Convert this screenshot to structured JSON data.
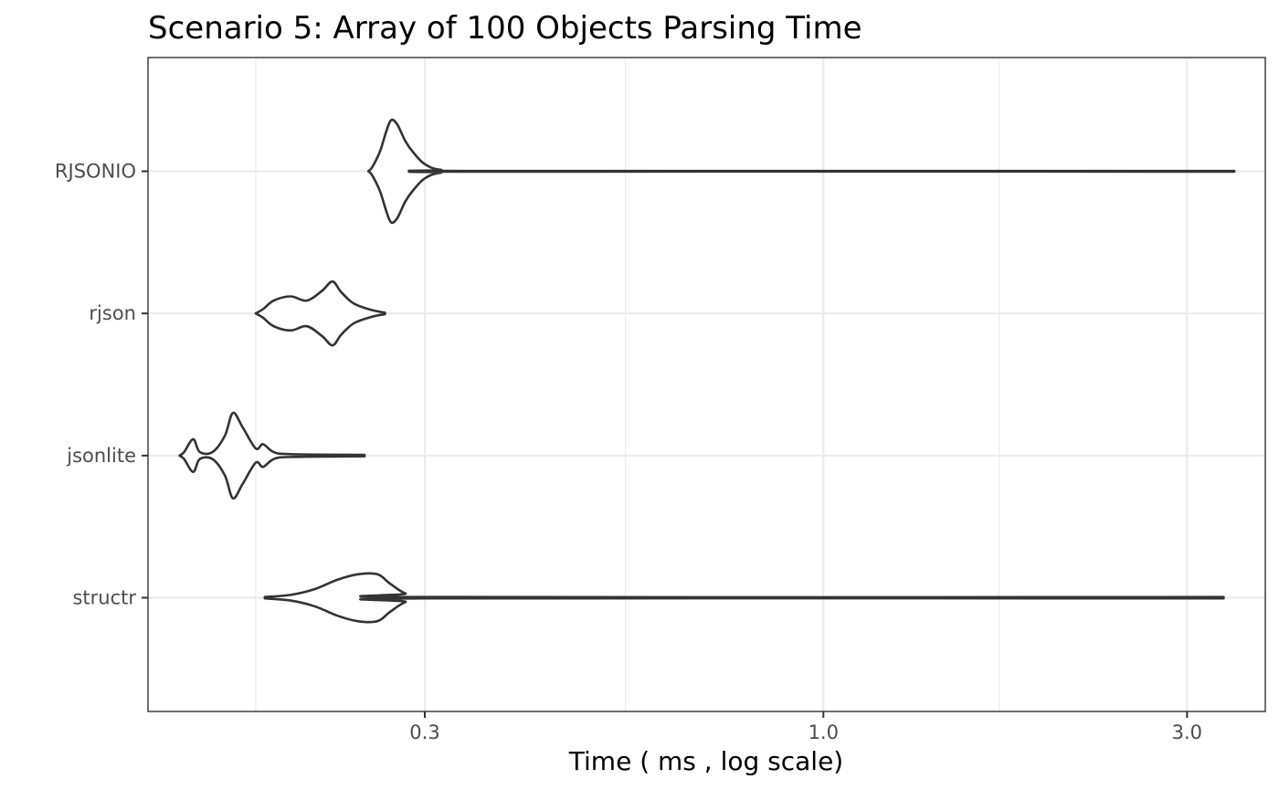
{
  "chart_data": {
    "type": "violin",
    "title": "Scenario 5: Array of 100 Objects Parsing Time",
    "xlabel": "Time ( ms , log scale)",
    "ylabel": "",
    "x_scale": "log10",
    "xlim": [
      0.13,
      3.8
    ],
    "x_ticks": [
      0.3,
      1.0,
      3.0
    ],
    "x_tick_labels": [
      "0.3",
      "1.0",
      "3.0"
    ],
    "x_minor_ticks": [
      0.18,
      0.55,
      1.7
    ],
    "grid": true,
    "theme": "black-and-white",
    "outline_color": "#333333",
    "fill_color": "#ffffff",
    "categories": [
      "RJSONIO",
      "rjson",
      "jsonlite",
      "structr"
    ],
    "series": [
      {
        "name": "RJSONIO",
        "profile": [
          [
            0.253,
            0.0
          ],
          [
            0.256,
            0.06
          ],
          [
            0.262,
            0.28
          ],
          [
            0.267,
            0.56
          ],
          [
            0.271,
            0.72
          ],
          [
            0.276,
            0.66
          ],
          [
            0.283,
            0.42
          ],
          [
            0.29,
            0.26
          ],
          [
            0.3,
            0.1
          ],
          [
            0.315,
            0.02
          ],
          [
            0.35,
            0.005
          ],
          [
            3.46,
            0.005
          ]
        ]
      },
      {
        "name": "rjson",
        "profile": [
          [
            0.18,
            0.0
          ],
          [
            0.184,
            0.06
          ],
          [
            0.19,
            0.18
          ],
          [
            0.2,
            0.24
          ],
          [
            0.21,
            0.18
          ],
          [
            0.22,
            0.32
          ],
          [
            0.227,
            0.45
          ],
          [
            0.233,
            0.3
          ],
          [
            0.242,
            0.14
          ],
          [
            0.255,
            0.05
          ],
          [
            0.266,
            0.01
          ]
        ]
      },
      {
        "name": "jsonlite",
        "profile": [
          [
            0.143,
            0.0
          ],
          [
            0.145,
            0.05
          ],
          [
            0.149,
            0.23
          ],
          [
            0.152,
            0.05
          ],
          [
            0.158,
            0.05
          ],
          [
            0.164,
            0.28
          ],
          [
            0.168,
            0.6
          ],
          [
            0.173,
            0.4
          ],
          [
            0.18,
            0.1
          ],
          [
            0.184,
            0.16
          ],
          [
            0.19,
            0.05
          ],
          [
            0.2,
            0.02
          ],
          [
            0.25,
            0.01
          ]
        ]
      },
      {
        "name": "structr",
        "profile": [
          [
            0.185,
            0.01
          ],
          [
            0.2,
            0.04
          ],
          [
            0.215,
            0.12
          ],
          [
            0.23,
            0.25
          ],
          [
            0.245,
            0.33
          ],
          [
            0.26,
            0.33
          ],
          [
            0.27,
            0.2
          ],
          [
            0.283,
            0.06
          ],
          [
            0.3,
            0.01
          ],
          [
            3.35,
            0.01
          ]
        ]
      }
    ]
  }
}
